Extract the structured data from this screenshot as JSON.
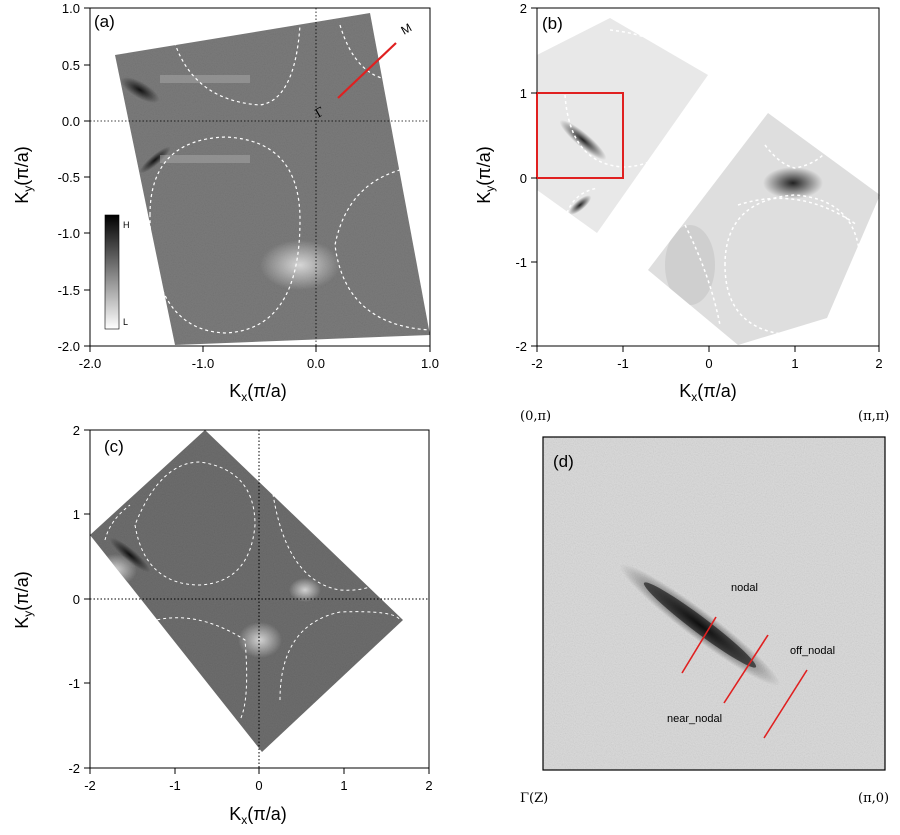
{
  "panels": {
    "a": {
      "label": "(a)",
      "xlabel_main": "K",
      "xlabel_sub": "x",
      "xlabel_unit": "(π/a)",
      "ylabel_main": "K",
      "ylabel_sub": "y",
      "ylabel_unit": "(π/a)",
      "xticks": [
        "-2.0",
        "-1.0",
        "0.0",
        "1.0"
      ],
      "yticks": [
        "1.0",
        "0.5",
        "0.0",
        "-0.5",
        "-1.0",
        "-1.5",
        "-2.0"
      ],
      "point_gamma": "Γ",
      "point_m": "M",
      "colorbar_high": "H",
      "colorbar_low": "L"
    },
    "b": {
      "label": "(b)",
      "xlabel_main": "K",
      "xlabel_sub": "x",
      "xlabel_unit": "(π/a)",
      "ylabel_main": "K",
      "ylabel_sub": "y",
      "ylabel_unit": "(π/a)",
      "xticks": [
        "-2",
        "-1",
        "0",
        "1",
        "2"
      ],
      "yticks": [
        "2",
        "1",
        "0",
        "-1",
        "-2"
      ]
    },
    "c": {
      "label": "(c)",
      "xlabel_main": "K",
      "xlabel_sub": "x",
      "xlabel_unit": "(π/a)",
      "ylabel_main": "K",
      "ylabel_sub": "y",
      "ylabel_unit": "(π/a)",
      "xticks": [
        "-2",
        "-1",
        "0",
        "1",
        "2"
      ],
      "yticks": [
        "2",
        "1",
        "0",
        "-1",
        "-2"
      ]
    },
    "d": {
      "label": "(d)",
      "corner_top_left": "(0,π)",
      "corner_top_right": "(π,π)",
      "corner_bottom_left": "Γ(Z)",
      "corner_bottom_right": "(π,0)",
      "cut_labels": [
        "nodal",
        "near_nodal",
        "off_nodal"
      ]
    }
  },
  "colors": {
    "cut_line": "#e02020",
    "contour": "#ffffff",
    "axis": "#000000"
  }
}
